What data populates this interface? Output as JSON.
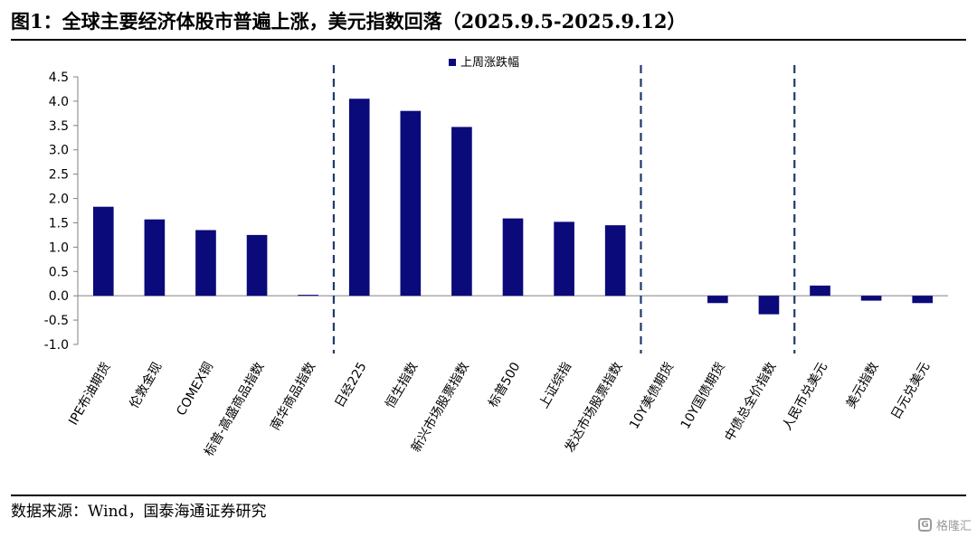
{
  "title": "图1：全球主要经济体股市普遍上涨，美元指数回落（2025.9.5-2025.9.12）",
  "source": "数据来源：Wind，国泰海通证券研究",
  "watermark": {
    "icon": "brand-logo-icon",
    "text": "格隆汇"
  },
  "colors": {
    "bar": "#0a0a7a",
    "divider": "#1f3a6e",
    "axis": "#808080"
  },
  "chart_data": {
    "type": "bar",
    "categories": [
      "IPE布油期货",
      "伦敦金现",
      "COMEX铜",
      "标普-高盛商品指数",
      "南华商品指数",
      "日经225",
      "恒生指数",
      "新兴市场股票指数",
      "标普500",
      "上证综指",
      "发达市场股票指数",
      "10Y美债期货",
      "10Y国债期货",
      "中债总全价指数",
      "人民币兑美元",
      "美元指数",
      "日元兑美元"
    ],
    "series": [
      {
        "name": "上周涨跌幅",
        "values": [
          1.83,
          1.57,
          1.35,
          1.25,
          0.02,
          4.05,
          3.8,
          3.47,
          1.59,
          1.52,
          1.45,
          0.0,
          -0.15,
          -0.38,
          0.21,
          -0.1,
          -0.15
        ]
      }
    ],
    "ylim": [
      -1.0,
      4.5
    ],
    "yticks": [
      "4.5",
      "4.0",
      "3.5",
      "3.0",
      "2.5",
      "2.0",
      "1.5",
      "1.0",
      "0.5",
      "0.0",
      "-0.5",
      "-1.0"
    ],
    "ytick_values": [
      4.5,
      4.0,
      3.5,
      3.0,
      2.5,
      2.0,
      1.5,
      1.0,
      0.5,
      0.0,
      -0.5,
      -1.0
    ],
    "group_dividers_after": [
      "南华商品指数",
      "发达市场股票指数",
      "中债总全价指数"
    ],
    "legend": "top-center",
    "grid": false
  }
}
